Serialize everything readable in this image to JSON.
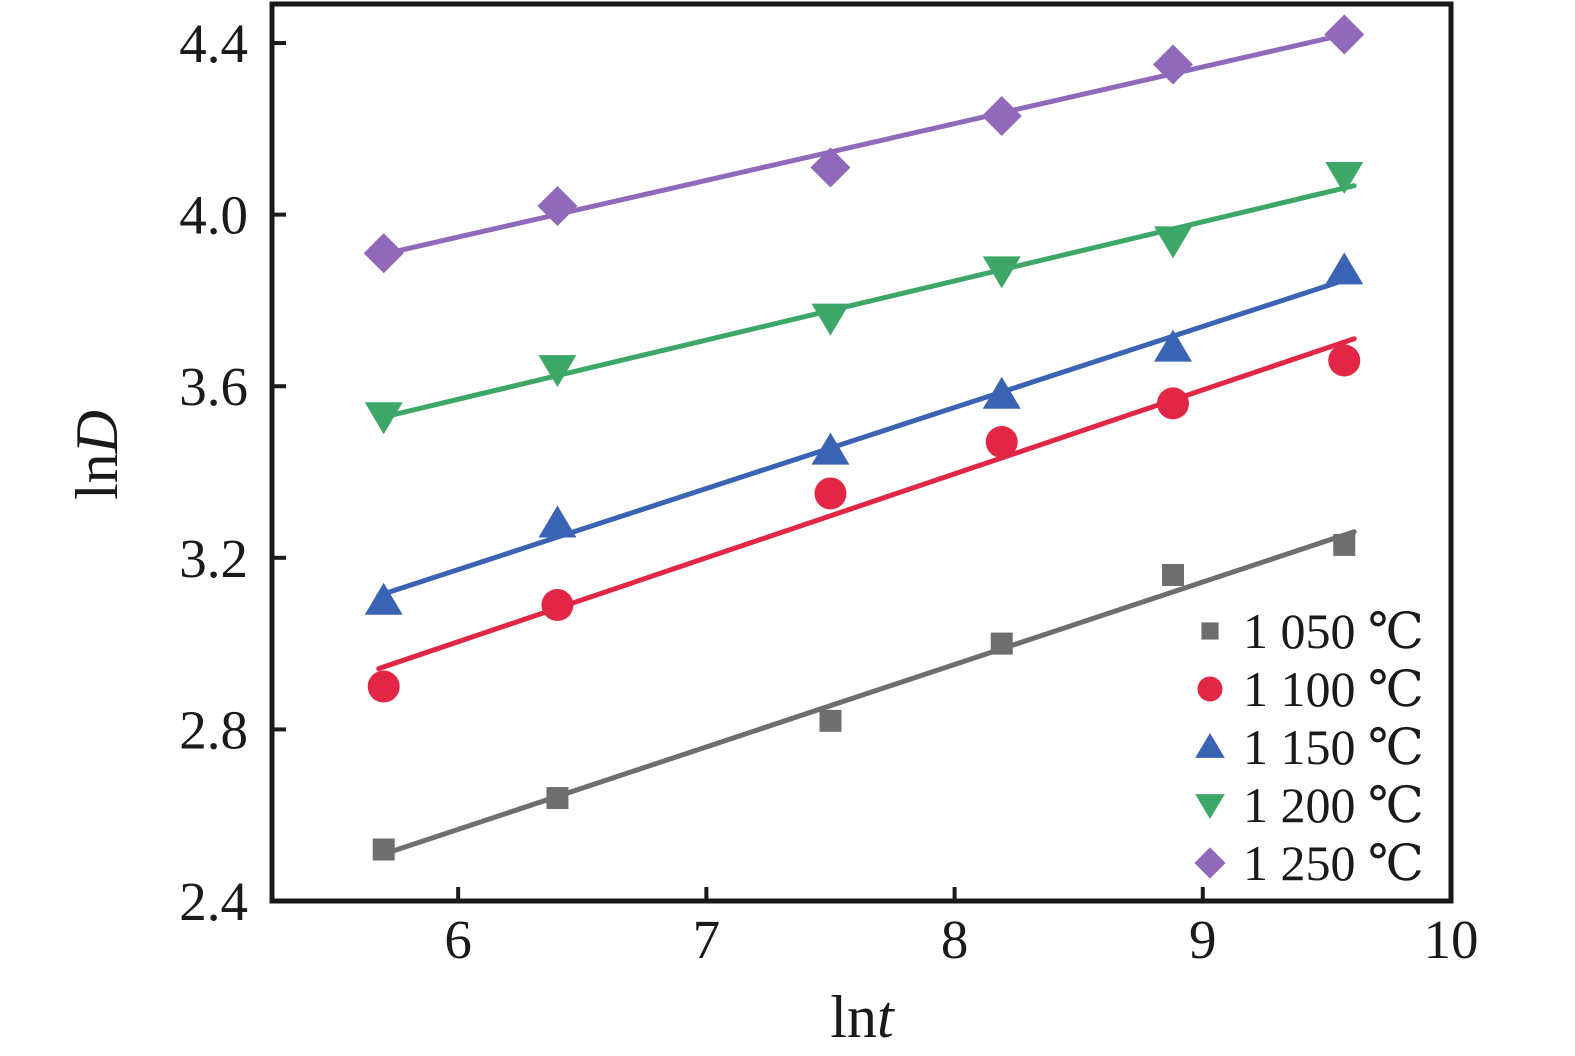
{
  "chart_data": {
    "type": "scatter",
    "title": "",
    "x_label": {
      "prefix": "ln",
      "variable": "t"
    },
    "y_label": {
      "prefix": "ln",
      "variable": "D"
    },
    "xlim": [
      5.25,
      10
    ],
    "ylim": [
      2.4,
      4.491
    ],
    "x_ticks": {
      "values": [
        6,
        7,
        8,
        9,
        10
      ],
      "labels": [
        "6",
        "7",
        "8",
        "9",
        "10"
      ]
    },
    "y_ticks": {
      "values": [
        2.4,
        2.8,
        3.2,
        3.6,
        4.0,
        4.4
      ],
      "labels": [
        "2.4",
        "2.8",
        "3.2",
        "3.6",
        "4.0",
        "4.4"
      ]
    },
    "grid": false,
    "legend_position": "lower-right-inside",
    "fit_lines": "linear least-squares per series",
    "x": [
      5.7,
      6.4,
      7.5,
      8.19,
      8.88,
      9.57
    ],
    "series": [
      {
        "name": "1 050 ℃",
        "marker": "square",
        "color": "#6e6e6e",
        "values": [
          2.52,
          2.64,
          2.82,
          3.0,
          3.16,
          3.23
        ]
      },
      {
        "name": "1 100 ℃",
        "marker": "circle",
        "color": "#e12745",
        "values": [
          2.9,
          3.09,
          3.35,
          3.47,
          3.56,
          3.66
        ]
      },
      {
        "name": "1 150 ℃",
        "marker": "triangle-up",
        "color": "#3b63b3",
        "values": [
          3.1,
          3.28,
          3.45,
          3.58,
          3.69,
          3.87
        ]
      },
      {
        "name": "1 200 ℃",
        "marker": "triangle-down",
        "color": "#3da767",
        "values": [
          3.53,
          3.64,
          3.76,
          3.87,
          3.94,
          4.09
        ]
      },
      {
        "name": "1 250 ℃",
        "marker": "diamond",
        "color": "#9169bb",
        "values": [
          3.91,
          4.02,
          4.11,
          4.23,
          4.35,
          4.42
        ]
      }
    ],
    "axis_color": "#1a1a1a",
    "text_color": "#1a1a1a"
  }
}
